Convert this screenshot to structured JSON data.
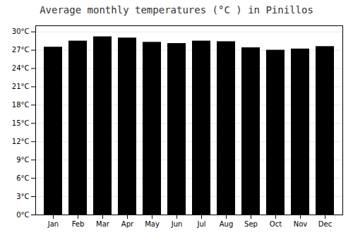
{
  "chart_data": {
    "type": "bar",
    "title": "Average monthly temperatures (°C ) in Pinillos",
    "categories": [
      "Jan",
      "Feb",
      "Mar",
      "Apr",
      "May",
      "Jun",
      "Jul",
      "Aug",
      "Sep",
      "Oct",
      "Nov",
      "Dec"
    ],
    "values": [
      27.5,
      28.5,
      29.2,
      29.0,
      28.3,
      28.1,
      28.5,
      28.4,
      27.4,
      27.0,
      27.2,
      27.6
    ],
    "ylim": [
      0,
      31
    ],
    "yticks": [
      {
        "value": 0,
        "label": "0°C"
      },
      {
        "value": 3,
        "label": "3°C"
      },
      {
        "value": 6,
        "label": "6°C"
      },
      {
        "value": 9,
        "label": "9°C"
      },
      {
        "value": 12,
        "label": "12°C"
      },
      {
        "value": 15,
        "label": "15°C"
      },
      {
        "value": 18,
        "label": "18°C"
      },
      {
        "value": 21,
        "label": "21°C"
      },
      {
        "value": 24,
        "label": "24°C"
      },
      {
        "value": 27,
        "label": "27°C"
      },
      {
        "value": 30,
        "label": "30°C"
      }
    ],
    "grid": true
  }
}
